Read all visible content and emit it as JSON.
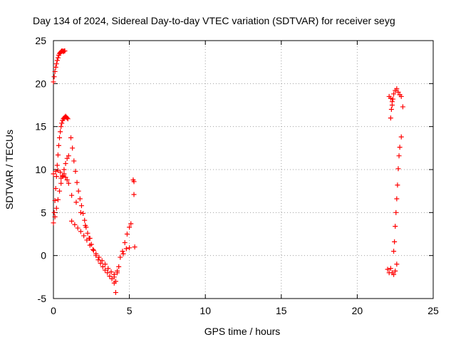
{
  "chart_data": {
    "type": "scatter",
    "title": "Day 134 of 2024, Sidereal Day-to-day VTEC variation (SDTVAR) for receiver seyg",
    "xlabel": "GPS time / hours",
    "ylabel": "SDTVAR / TECUs",
    "xlim": [
      0,
      25
    ],
    "ylim": [
      -5,
      25
    ],
    "xticks": [
      0,
      5,
      10,
      15,
      20,
      25
    ],
    "yticks": [
      -5,
      0,
      5,
      10,
      15,
      20,
      25
    ],
    "grid": true,
    "marker": "+",
    "series": [
      {
        "name": "SDTVAR",
        "color": "#ff0000",
        "x": [
          0.0,
          0.05,
          0.1,
          0.15,
          0.2,
          0.25,
          0.3,
          0.35,
          0.4,
          0.45,
          0.5,
          0.55,
          0.6,
          0.65,
          0.7,
          0.75,
          0.0,
          0.05,
          0.1,
          0.15,
          0.2,
          0.25,
          0.3,
          0.35,
          0.4,
          0.45,
          0.5,
          0.55,
          0.6,
          0.65,
          0.7,
          0.75,
          0.8,
          0.85,
          0.9,
          0.95,
          0.1,
          0.2,
          0.3,
          0.4,
          0.5,
          0.6,
          0.7,
          0.8,
          0.9,
          1.0,
          0.5,
          0.6,
          0.7,
          0.8,
          0.9,
          1.0,
          0.0,
          0.15,
          0.3,
          0.45,
          1.15,
          1.25,
          1.35,
          1.45,
          1.55,
          1.65,
          1.75,
          1.85,
          1.95,
          2.05,
          2.15,
          2.25,
          2.35,
          2.5,
          2.65,
          2.8,
          2.95,
          3.1,
          3.25,
          3.4,
          3.55,
          3.7,
          3.85,
          4.0,
          4.1,
          1.2,
          1.4,
          1.6,
          1.8,
          2.0,
          2.2,
          2.4,
          2.6,
          2.8,
          3.0,
          3.2,
          3.4,
          3.6,
          3.8,
          4.0,
          4.2,
          1.2,
          1.5,
          1.8,
          2.1,
          2.4,
          4.0,
          4.1,
          4.2,
          4.3,
          4.4,
          4.55,
          4.7,
          4.85,
          5.0,
          5.1,
          4.6,
          4.8,
          5.0,
          5.25,
          5.3,
          5.3,
          5.35,
          22.1,
          22.2,
          22.3,
          22.4,
          22.5,
          22.6,
          22.7,
          22.8,
          22.9,
          23.0,
          22.2,
          22.3,
          22.4,
          22.5,
          22.6,
          22.0,
          22.1,
          22.2,
          22.25,
          22.3,
          22.35,
          22.4,
          22.45,
          22.5,
          22.55,
          22.6,
          22.65,
          22.7,
          22.75,
          22.8,
          22.9
        ],
        "y": [
          20.2,
          20.8,
          21.4,
          21.9,
          22.3,
          22.7,
          23.0,
          23.3,
          23.5,
          23.6,
          23.7,
          23.8,
          23.8,
          23.7,
          23.8,
          23.8,
          3.8,
          5.0,
          6.4,
          7.8,
          9.2,
          10.5,
          11.7,
          12.8,
          13.7,
          14.4,
          15.0,
          15.4,
          15.7,
          15.9,
          16.0,
          16.1,
          16.2,
          16.1,
          16.0,
          15.9,
          4.5,
          5.5,
          6.5,
          7.5,
          8.4,
          9.2,
          10.0,
          10.7,
          11.3,
          11.6,
          9.0,
          9.3,
          9.5,
          9.1,
          8.8,
          8.4,
          9.5,
          9.8,
          9.9,
          9.7,
          13.7,
          12.5,
          11.0,
          9.8,
          8.5,
          7.5,
          6.6,
          5.8,
          4.9,
          4.1,
          3.3,
          2.6,
          2.0,
          1.3,
          0.6,
          0.0,
          -0.5,
          -0.9,
          -1.3,
          -1.7,
          -2.0,
          -2.4,
          -2.7,
          -3.2,
          -4.3,
          4.0,
          3.6,
          3.2,
          2.8,
          2.3,
          1.8,
          1.2,
          0.7,
          0.2,
          -0.2,
          -0.6,
          -1.0,
          -1.5,
          -1.9,
          -2.2,
          -1.8,
          7.0,
          6.2,
          5.0,
          3.5,
          2.0,
          -2.5,
          -3.0,
          -2.0,
          -1.3,
          -0.2,
          0.5,
          1.5,
          2.5,
          3.3,
          3.7,
          0.2,
          0.8,
          0.9,
          8.8,
          8.6,
          7.1,
          1.0,
          18.5,
          18.3,
          17.5,
          18.8,
          19.2,
          19.4,
          19.0,
          18.7,
          18.5,
          17.3,
          -1.5,
          -2.0,
          -2.2,
          -1.8,
          -1.0,
          -1.6,
          -2.0,
          16.0,
          17.0,
          17.9,
          18.2,
          0.5,
          1.6,
          3.4,
          5.0,
          6.6,
          8.2,
          10.1,
          11.6,
          12.6,
          13.8
        ]
      }
    ]
  }
}
